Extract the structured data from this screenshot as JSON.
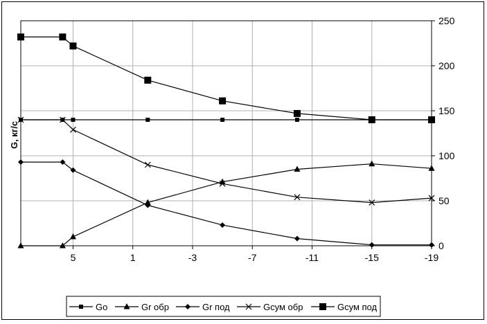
{
  "chart_data": {
    "type": "line",
    "title": "",
    "xlabel": "",
    "ylabel": "G, кг/с",
    "x": [
      8.5,
      5.7,
      5,
      0,
      -5,
      -10,
      -15,
      -19
    ],
    "x_tick_labels": [
      "5",
      "1",
      "-3",
      "-7",
      "-11",
      "-15",
      "-19"
    ],
    "x_tick_values": [
      5,
      1,
      -3,
      -7,
      -11,
      -15,
      -19
    ],
    "xlim": [
      8.5,
      -19
    ],
    "ylim": [
      0,
      250
    ],
    "y_ticks": [
      0,
      50,
      100,
      150,
      200,
      250
    ],
    "grid": true,
    "legend_position": "bottom",
    "series": [
      {
        "name": "Go",
        "marker": "square-small",
        "values": [
          140,
          140,
          140,
          140,
          140,
          140,
          140,
          140
        ]
      },
      {
        "name": "Gr обр",
        "marker": "triangle",
        "values": [
          0,
          0,
          10,
          48,
          71,
          85,
          91,
          86
        ]
      },
      {
        "name": "Gr под",
        "marker": "diamond",
        "values": [
          93,
          93,
          84,
          45,
          23,
          8,
          1,
          1
        ]
      },
      {
        "name": "Gсум обр",
        "marker": "cross",
        "values": [
          140,
          140,
          129,
          90,
          69,
          54,
          48,
          53
        ]
      },
      {
        "name": "Gсум под",
        "marker": "square-large",
        "values": [
          232,
          232,
          222,
          184,
          161,
          147,
          140,
          140
        ]
      }
    ]
  }
}
